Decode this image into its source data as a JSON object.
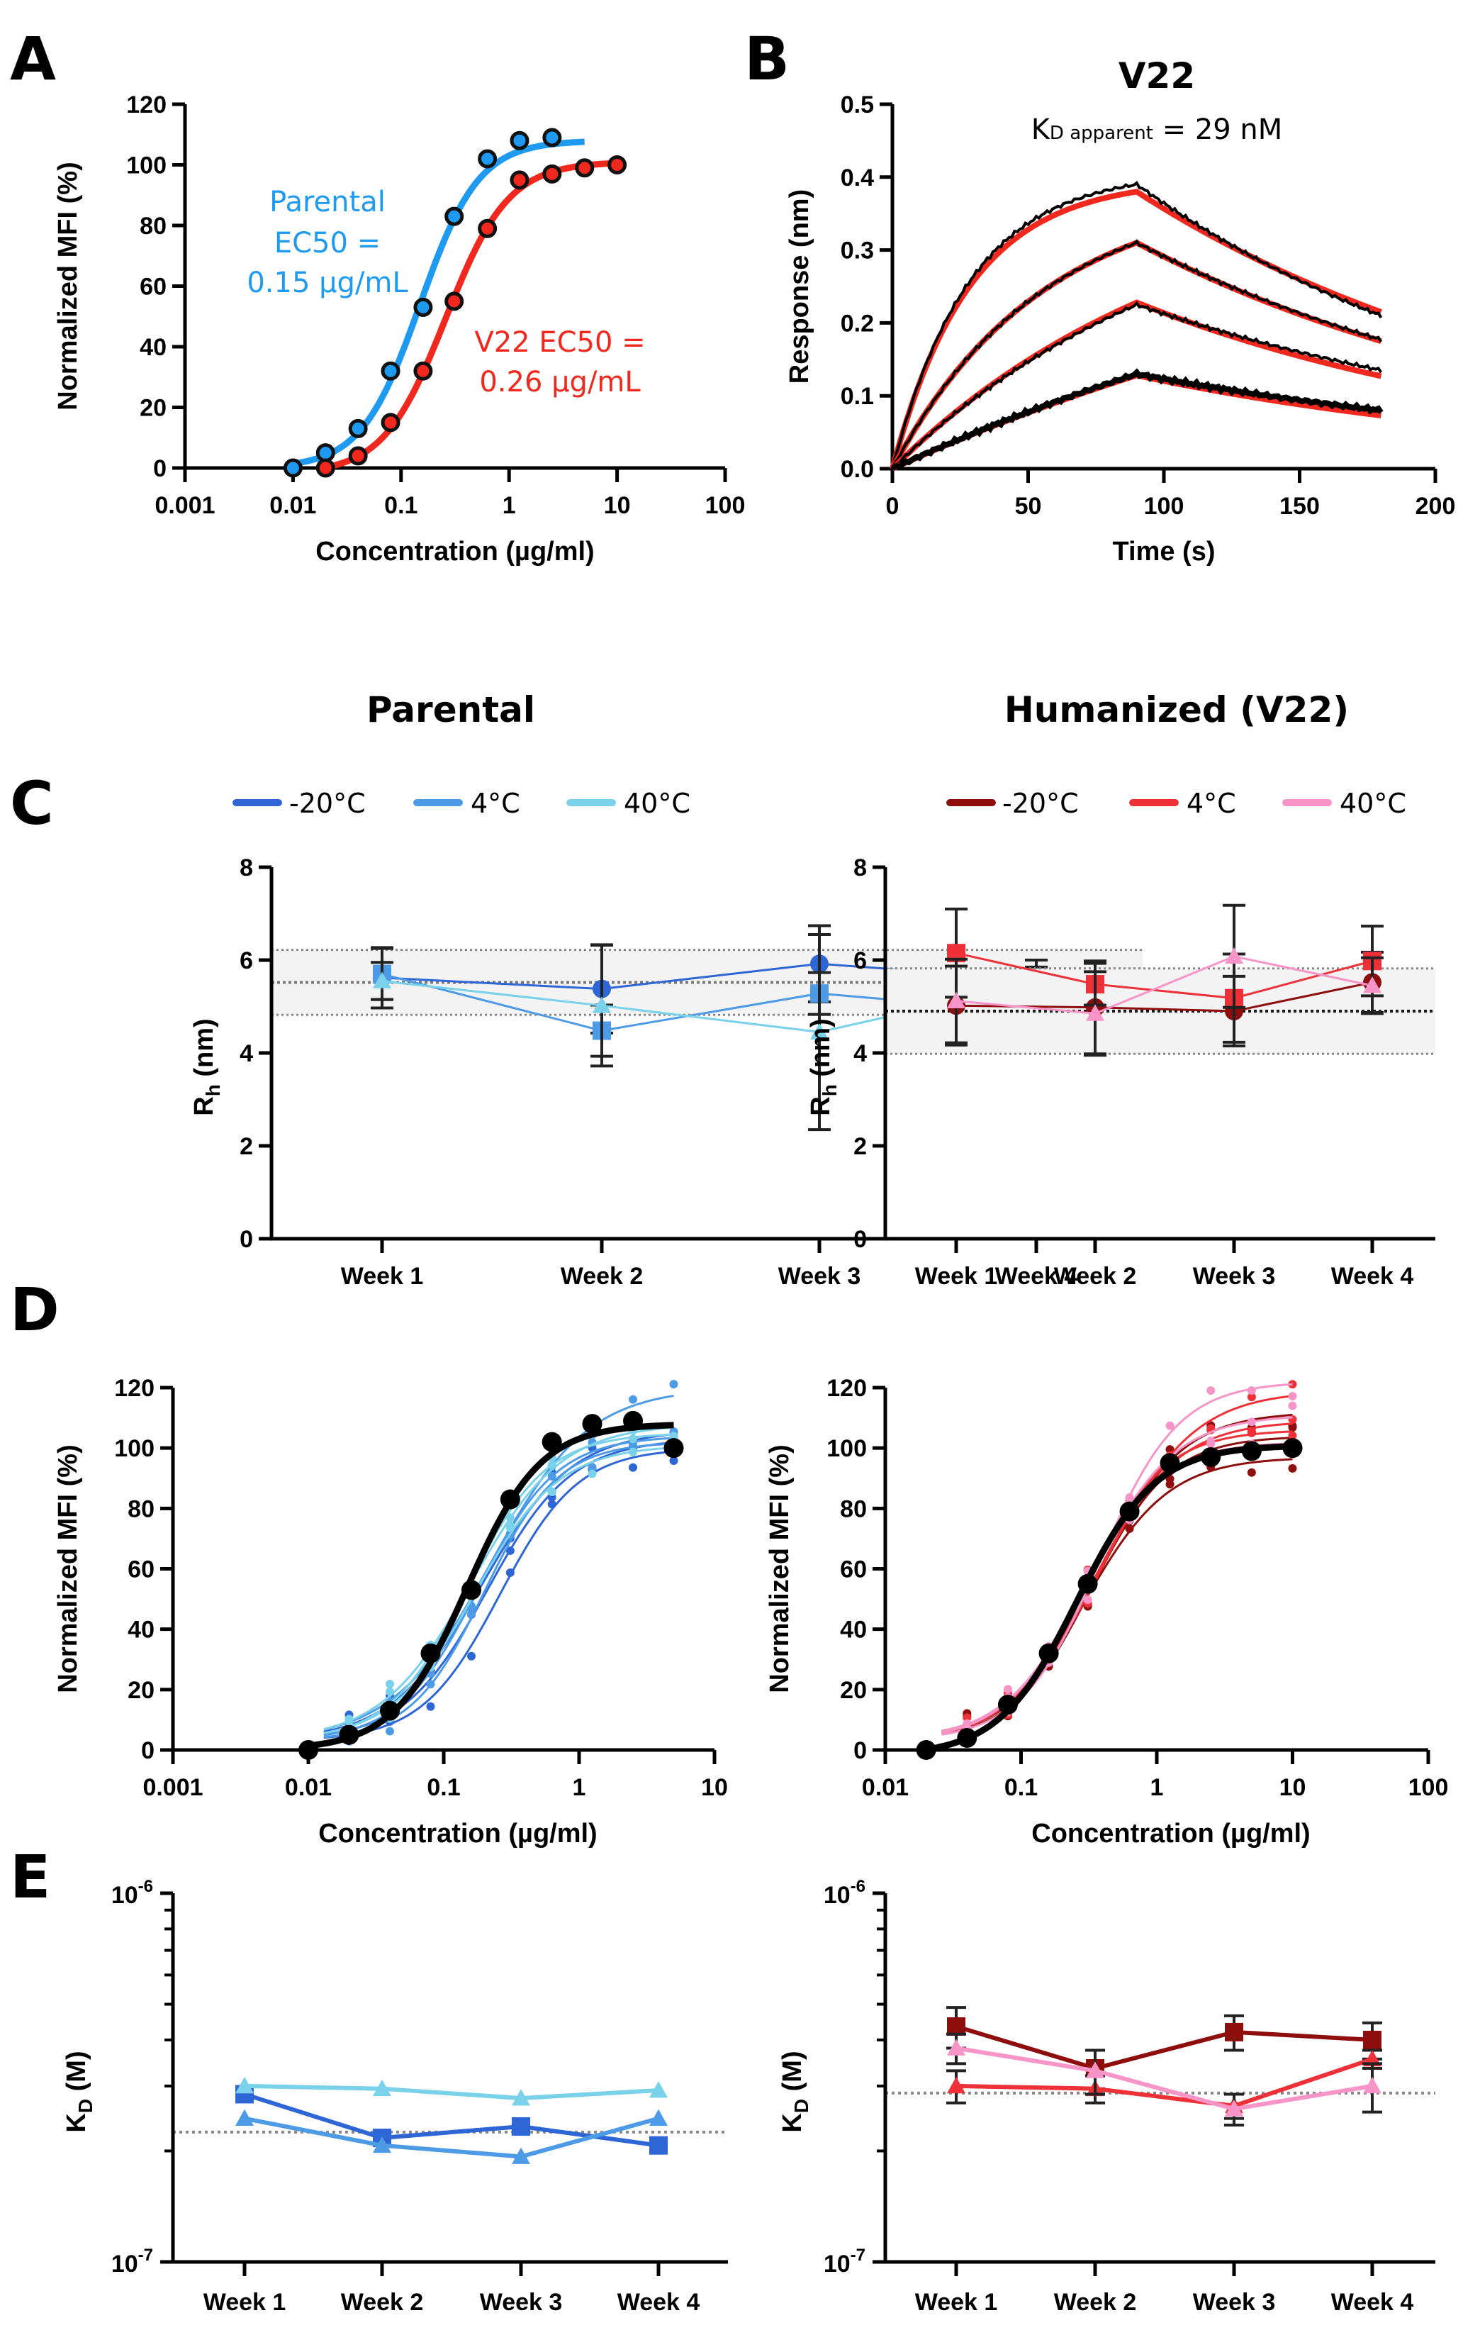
{
  "panel_letters": {
    "A": "A",
    "B": "B",
    "C": "C",
    "D": "D",
    "E": "E"
  },
  "group_titles": {
    "left": "Parental",
    "right": "Humanized (V22)"
  },
  "legend": {
    "left": [
      {
        "label": "-20°C",
        "color": "#2F66D6"
      },
      {
        "label": "4°C",
        "color": "#4D9BE6"
      },
      {
        "label": "40°C",
        "color": "#79D2EA"
      }
    ],
    "right": [
      {
        "label": "-20°C",
        "color": "#8E0E0E"
      },
      {
        "label": "4°C",
        "color": "#EE3038"
      },
      {
        "label": "40°C",
        "color": "#F895C8"
      }
    ]
  },
  "chart_data": [
    {
      "id": "A",
      "type": "scatter",
      "xscale": "log",
      "xlabel": "Concentration (µg/ml)",
      "ylabel": "Normalized MFI (%)",
      "xlim": [
        0.001,
        100
      ],
      "ylim": [
        0,
        120
      ],
      "xticks": [
        "0.001",
        "0.01",
        "0.1",
        "1",
        "10",
        "100"
      ],
      "yticks": [
        "0",
        "20",
        "40",
        "60",
        "80",
        "100",
        "120"
      ],
      "annotations": [
        {
          "lines": [
            "Parental",
            "EC50 =",
            "0.15 µg/mL"
          ],
          "color": "#1E9BF0"
        },
        {
          "lines": [
            "V22 EC50 =",
            "0.26 µg/mL"
          ],
          "color": "#F0281E"
        }
      ],
      "series": [
        {
          "name": "Parental",
          "color": "#1E9BF0",
          "x": [
            0.01,
            0.02,
            0.04,
            0.08,
            0.16,
            0.31,
            0.63,
            1.25,
            2.5
          ],
          "y": [
            0,
            5,
            13,
            32,
            53,
            83,
            102,
            108,
            109
          ],
          "fit": {
            "bottom": 0,
            "top": 108,
            "ec50": 0.15,
            "hill": 1.6,
            "xmax": 5
          }
        },
        {
          "name": "V22",
          "color": "#F0281E",
          "x": [
            0.02,
            0.04,
            0.08,
            0.16,
            0.31,
            0.63,
            1.25,
            2.5,
            5,
            10
          ],
          "y": [
            0,
            4,
            15,
            32,
            55,
            79,
            95,
            97,
            99,
            100
          ],
          "fit": {
            "bottom": -2,
            "top": 101,
            "ec50": 0.26,
            "hill": 1.5,
            "xmax": 10
          }
        }
      ]
    },
    {
      "id": "B",
      "type": "line",
      "title": "V22",
      "subtitle": {
        "main": "K",
        "sub": "D apparent",
        "rest": " = 29 nM"
      },
      "xlabel": "Time (s)",
      "ylabel": "Response (nm)",
      "xlim": [
        0,
        200
      ],
      "ylim": [
        0,
        0.5
      ],
      "xticks": [
        "0",
        "50",
        "100",
        "150",
        "200"
      ],
      "yticks": [
        "0.0",
        "0.1",
        "0.2",
        "0.3",
        "0.4",
        "0.5"
      ],
      "association_end_s": 90,
      "dissociation_end_s": 180,
      "series": [
        {
          "name": "trace-1",
          "peak_measured": 0.39,
          "peak_fit": 0.38,
          "end_measured": 0.21,
          "end_fit": 0.215,
          "k_on": 0.035
        },
        {
          "name": "trace-2",
          "peak_measured": 0.31,
          "peak_fit": 0.31,
          "end_measured": 0.177,
          "end_fit": 0.175,
          "k_on": 0.018
        },
        {
          "name": "trace-3",
          "peak_measured": 0.225,
          "peak_fit": 0.228,
          "end_measured": 0.135,
          "end_fit": 0.127,
          "k_on": 0.009
        },
        {
          "name": "trace-4",
          "peak_measured": 0.13,
          "peak_fit": 0.128,
          "end_measured": 0.08,
          "end_fit": 0.073,
          "k_on": 0.004
        }
      ],
      "colors": {
        "measured": "#000000",
        "fit": "#F0281E"
      }
    },
    {
      "id": "C-left",
      "type": "line",
      "ylabel": {
        "main": "R",
        "sub": "h",
        "rest": " (nm)"
      },
      "categories": [
        "Week 1",
        "Week 2",
        "Week 3",
        "Week 4"
      ],
      "ylim": [
        0,
        8
      ],
      "yticks": [
        "0",
        "2",
        "4",
        "6",
        "8"
      ],
      "band": {
        "low": 4.82,
        "mid": 5.52,
        "high": 6.22
      },
      "series": [
        {
          "name": "-20°C",
          "marker": "circle",
          "values": [
            5.62,
            5.38,
            5.92,
            5.58
          ],
          "err": [
            0.65,
            0.95,
            0.82,
            0.42
          ]
        },
        {
          "name": "4°C",
          "marker": "square",
          "values": [
            5.7,
            4.48,
            5.28,
            4.88
          ],
          "err": [
            0.55,
            0.55,
            0.45,
            0.62
          ]
        },
        {
          "name": "40°C",
          "marker": "triangle",
          "values": [
            5.55,
            5.02,
            4.45,
            5.5
          ],
          "err": [
            0.4,
            1.3,
            2.1,
            0.35
          ]
        }
      ]
    },
    {
      "id": "C-right",
      "type": "line",
      "ylabel": {
        "main": "R",
        "sub": "h",
        "rest": " (nm)"
      },
      "categories": [
        "Week 1",
        "Week 2",
        "Week 3",
        "Week 4"
      ],
      "ylim": [
        0,
        8
      ],
      "yticks": [
        "0",
        "2",
        "4",
        "6",
        "8"
      ],
      "band": {
        "low": 3.98,
        "mid": 4.9,
        "high": 5.82
      },
      "series": [
        {
          "name": "-20°C",
          "marker": "circle",
          "values": [
            5.02,
            4.98,
            4.9,
            5.52
          ],
          "err": [
            0.85,
            1.0,
            0.75,
            0.65
          ]
        },
        {
          "name": "4°C",
          "marker": "square",
          "values": [
            6.15,
            5.48,
            5.18,
            5.98
          ],
          "err": [
            0.95,
            0.45,
            0.95,
            0.75
          ]
        },
        {
          "name": "40°C",
          "marker": "triangle",
          "values": [
            5.12,
            4.85,
            6.08,
            5.45
          ],
          "err": [
            0.9,
            0.9,
            1.1,
            0.6
          ]
        }
      ]
    },
    {
      "id": "D-left",
      "type": "scatter",
      "xscale": "log",
      "xlabel": "Concentration (µg/ml)",
      "ylabel": "Normalized MFI (%)",
      "xlim": [
        0.001,
        10
      ],
      "ylim": [
        0,
        120
      ],
      "xticks": [
        "0.001",
        "0.01",
        "0.1",
        "1",
        "10"
      ],
      "yticks": [
        "0",
        "20",
        "40",
        "60",
        "80",
        "100",
        "120"
      ],
      "reference": {
        "color": "#000000",
        "x": [
          0.01,
          0.02,
          0.04,
          0.08,
          0.16,
          0.31,
          0.63,
          1.25,
          2.5,
          5
        ],
        "y": [
          0,
          5,
          13,
          32,
          53,
          83,
          102,
          108,
          109,
          100
        ],
        "fit": {
          "bottom": 0,
          "top": 108,
          "ec50": 0.15,
          "hill": 1.6
        }
      },
      "replicate_fits": [
        {
          "color": "#2F66D6",
          "top": 100,
          "ec50": 0.26,
          "hill": 1.5
        },
        {
          "color": "#2F66D6",
          "top": 103,
          "ec50": 0.21,
          "hill": 1.4
        },
        {
          "color": "#2F66D6",
          "top": 106,
          "ec50": 0.19,
          "hill": 1.3
        },
        {
          "color": "#4D9BE6",
          "top": 120,
          "ec50": 0.22,
          "hill": 1.2
        },
        {
          "color": "#4D9BE6",
          "top": 104,
          "ec50": 0.18,
          "hill": 1.5
        },
        {
          "color": "#4D9BE6",
          "top": 102,
          "ec50": 0.2,
          "hill": 1.6
        },
        {
          "color": "#79D2EA",
          "top": 105,
          "ec50": 0.15,
          "hill": 1.5
        },
        {
          "color": "#79D2EA",
          "top": 101,
          "ec50": 0.17,
          "hill": 1.4
        },
        {
          "color": "#79D2EA",
          "top": 108,
          "ec50": 0.16,
          "hill": 1.3
        }
      ]
    },
    {
      "id": "D-right",
      "type": "scatter",
      "xscale": "log",
      "xlabel": "Concentration (µg/ml)",
      "ylabel": "Normalized MFI (%)",
      "xlim": [
        0.01,
        100
      ],
      "ylim": [
        0,
        120
      ],
      "xticks": [
        "0.01",
        "0.1",
        "1",
        "10",
        "100"
      ],
      "yticks": [
        "0",
        "20",
        "40",
        "60",
        "80",
        "100",
        "120"
      ],
      "reference": {
        "color": "#000000",
        "x": [
          0.02,
          0.04,
          0.08,
          0.16,
          0.31,
          0.63,
          1.25,
          2.5,
          5,
          10
        ],
        "y": [
          0,
          4,
          15,
          32,
          55,
          79,
          95,
          97,
          99,
          100
        ],
        "fit": {
          "bottom": -2,
          "top": 101,
          "ec50": 0.26,
          "hill": 1.5
        }
      },
      "replicate_fits": [
        {
          "color": "#8E0E0E",
          "top": 97,
          "ec50": 0.3,
          "hill": 1.4
        },
        {
          "color": "#8E0E0E",
          "top": 104,
          "ec50": 0.33,
          "hill": 1.5
        },
        {
          "color": "#8E0E0E",
          "top": 112,
          "ec50": 0.36,
          "hill": 1.4
        },
        {
          "color": "#EE3038",
          "top": 119,
          "ec50": 0.4,
          "hill": 1.3
        },
        {
          "color": "#EE3038",
          "top": 109,
          "ec50": 0.34,
          "hill": 1.4
        },
        {
          "color": "#EE3038",
          "top": 106,
          "ec50": 0.3,
          "hill": 1.5
        },
        {
          "color": "#F895C8",
          "top": 122,
          "ec50": 0.38,
          "hill": 1.5
        },
        {
          "color": "#F895C8",
          "top": 111,
          "ec50": 0.32,
          "hill": 1.4
        },
        {
          "color": "#F895C8",
          "top": 102,
          "ec50": 0.28,
          "hill": 1.5
        }
      ]
    },
    {
      "id": "E-left",
      "type": "line",
      "yscale": "log",
      "ylabel": {
        "main": "K",
        "sub": "D",
        "rest": " (M)"
      },
      "categories": [
        "Week 1",
        "Week 2",
        "Week 3",
        "Week 4"
      ],
      "ylim": [
        1e-07,
        1e-06
      ],
      "yticks": [
        {
          "base": "10",
          "exp": "-7",
          "value": 1e-07
        },
        {
          "base": "10",
          "exp": "-6",
          "value": 1e-06
        }
      ],
      "reference_line": 2.25e-07,
      "series": [
        {
          "name": "-20°C",
          "marker": "square",
          "values": [
            2.85e-07,
            2.17e-07,
            2.33e-07,
            2.07e-07
          ]
        },
        {
          "name": "4°C",
          "marker": "triangle",
          "values": [
            2.45e-07,
            2.07e-07,
            1.93e-07,
            2.45e-07
          ]
        },
        {
          "name": "40°C",
          "marker": "triangle",
          "values": [
            3e-07,
            2.95e-07,
            2.78e-07,
            2.92e-07
          ]
        }
      ]
    },
    {
      "id": "E-right",
      "type": "line",
      "yscale": "log",
      "ylabel": {
        "main": "K",
        "sub": "D",
        "rest": " (M)"
      },
      "categories": [
        "Week 1",
        "Week 2",
        "Week 3",
        "Week 4"
      ],
      "ylim": [
        1e-07,
        1e-06
      ],
      "yticks": [
        {
          "base": "10",
          "exp": "-7",
          "value": 1e-07
        },
        {
          "base": "10",
          "exp": "-6",
          "value": 1e-06
        }
      ],
      "reference_line": 2.87e-07,
      "series": [
        {
          "name": "-20°C",
          "marker": "square",
          "values": [
            4.35e-07,
            3.35e-07,
            4.2e-07,
            4e-07
          ],
          "err": [
            5.5e-08,
            4e-08,
            4.5e-08,
            4.5e-08
          ]
        },
        {
          "name": "4°C",
          "marker": "triangle",
          "values": [
            3e-07,
            2.95e-07,
            2.65e-07,
            3.55e-07
          ],
          "err": [
            3e-08,
            2.5e-08,
            2e-08,
            2e-08
          ]
        },
        {
          "name": "40°C",
          "marker": "triangle",
          "values": [
            3.8e-07,
            3.3e-07,
            2.6e-07,
            3e-07
          ],
          "err": [
            3.5e-08,
            4.5e-08,
            2.5e-08,
            4.5e-08
          ]
        }
      ]
    }
  ]
}
